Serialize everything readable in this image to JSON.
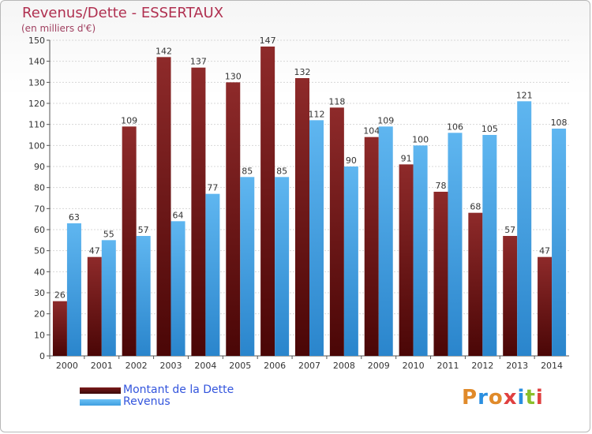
{
  "header": {
    "title": "Revenus/Dette - ESSERTAUX",
    "subtitle": "(en milliers d'€)"
  },
  "legend": [
    {
      "label": "Montant de la Dette",
      "color": "#7a1a1a"
    },
    {
      "label": "Revenus",
      "color": "#3f9fe0"
    }
  ],
  "logo": {
    "text": "Proxiti",
    "colors": [
      "#e08a2a",
      "#2a8fe0",
      "#e08a2a",
      "#e04040",
      "#2a8fe0",
      "#8abf2a",
      "#e04040"
    ]
  },
  "chart_data": {
    "type": "bar",
    "categories": [
      "2000",
      "2001",
      "2002",
      "2003",
      "2004",
      "2005",
      "2006",
      "2007",
      "2008",
      "2009",
      "2010",
      "2011",
      "2012",
      "2013",
      "2014"
    ],
    "series": [
      {
        "name": "Montant de la Dette",
        "color": "#7a1a1a",
        "values": [
          26,
          47,
          109,
          142,
          137,
          130,
          147,
          132,
          118,
          104,
          91,
          78,
          68,
          57,
          47
        ]
      },
      {
        "name": "Revenus",
        "color": "#3f9fe0",
        "values": [
          63,
          55,
          57,
          64,
          77,
          85,
          85,
          112,
          90,
          109,
          100,
          106,
          105,
          121,
          108
        ]
      }
    ],
    "ylim": [
      0,
      150
    ],
    "ytick_step": 10,
    "grid": true
  }
}
